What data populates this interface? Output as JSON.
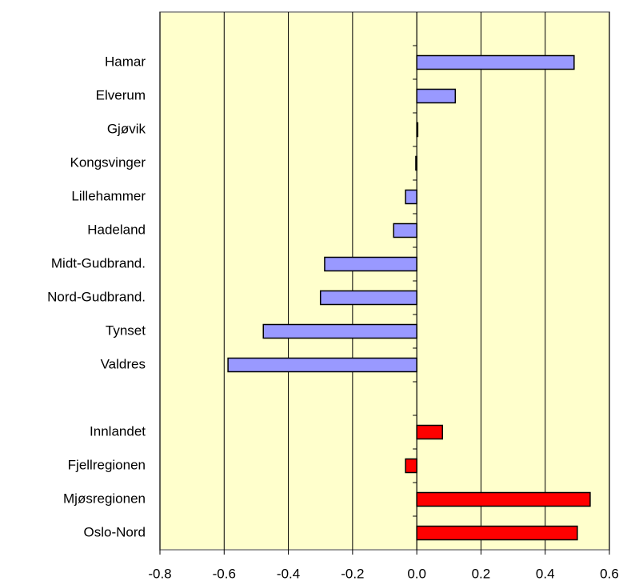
{
  "chart_data": {
    "type": "barh",
    "categories": [
      null,
      "Hamar",
      "Elverum",
      "Gjøvik",
      "Kongsvinger",
      "Lillehammer",
      "Hadeland",
      "Midt-Gudbrand.",
      "Nord-Gudbrand.",
      "Tynset",
      "Valdres",
      null,
      "Innlandet",
      "Fjellregionen",
      "Mjøsregionen",
      "Oslo-Nord"
    ],
    "values": [
      null,
      0.49,
      0.12,
      0.003,
      -0.003,
      -0.035,
      -0.072,
      -0.287,
      -0.3,
      -0.478,
      -0.588,
      null,
      0.08,
      -0.035,
      0.54,
      0.5
    ],
    "colors": [
      null,
      "#9999ff",
      "#9999ff",
      "#9999ff",
      "#9999ff",
      "#9999ff",
      "#9999ff",
      "#9999ff",
      "#9999ff",
      "#9999ff",
      "#9999ff",
      null,
      "#ff0000",
      "#ff0000",
      "#ff0000",
      "#ff0000"
    ],
    "xlim": [
      -0.8,
      0.6
    ],
    "xticks": [
      -0.8,
      -0.6,
      -0.4,
      -0.2,
      {
        "value": 0,
        "label": "0.0"
      },
      0.2,
      0.4,
      0.6
    ],
    "grid": true,
    "background": "#ffffcc"
  }
}
